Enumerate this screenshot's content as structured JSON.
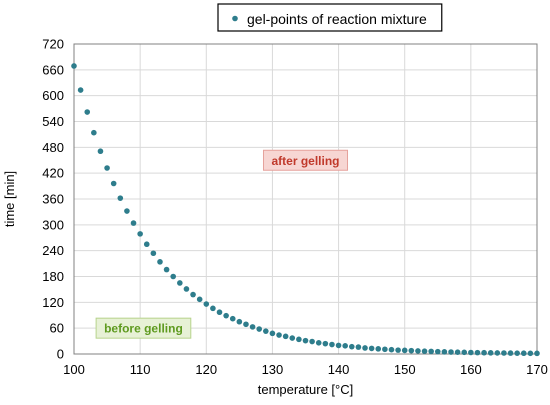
{
  "chart_data": {
    "type": "scatter",
    "xlabel": "temperature [°C]",
    "ylabel": "time [min]",
    "xlim": [
      100,
      170
    ],
    "ylim": [
      0,
      720
    ],
    "x_ticks": [
      100,
      110,
      120,
      130,
      140,
      150,
      160,
      170
    ],
    "y_ticks": [
      0,
      60,
      120,
      180,
      240,
      300,
      360,
      420,
      480,
      540,
      600,
      660,
      720
    ],
    "grid": true,
    "legend_position": "top-right",
    "series": [
      {
        "name": "gel-points of reaction mixture",
        "color": "#2e7d8c",
        "points": [
          [
            100,
            669
          ],
          [
            101,
            613
          ],
          [
            102,
            562
          ],
          [
            103,
            514
          ],
          [
            104,
            471
          ],
          [
            105,
            432
          ],
          [
            106,
            396
          ],
          [
            107,
            362
          ],
          [
            108,
            332
          ],
          [
            109,
            304
          ],
          [
            110,
            279
          ],
          [
            111,
            255
          ],
          [
            112,
            234
          ],
          [
            113,
            214
          ],
          [
            114,
            196
          ],
          [
            115,
            180
          ],
          [
            116,
            165
          ],
          [
            117,
            151
          ],
          [
            118,
            138
          ],
          [
            119,
            127
          ],
          [
            120,
            116
          ],
          [
            121,
            106
          ],
          [
            122,
            97
          ],
          [
            123,
            89
          ],
          [
            124,
            82
          ],
          [
            125,
            75
          ],
          [
            126,
            69
          ],
          [
            127,
            63
          ],
          [
            128,
            58
          ],
          [
            129,
            53
          ],
          [
            130,
            48
          ],
          [
            131,
            44
          ],
          [
            132,
            41
          ],
          [
            133,
            37
          ],
          [
            134,
            34
          ],
          [
            135,
            31
          ],
          [
            136,
            29
          ],
          [
            137,
            26
          ],
          [
            138,
            24
          ],
          [
            139,
            22
          ],
          [
            140,
            20
          ],
          [
            141,
            19
          ],
          [
            142,
            17
          ],
          [
            143,
            16
          ],
          [
            144,
            14
          ],
          [
            145,
            13
          ],
          [
            146,
            12
          ],
          [
            147,
            11
          ],
          [
            148,
            10
          ],
          [
            149,
            9
          ],
          [
            150,
            8.5
          ],
          [
            151,
            7.8
          ],
          [
            152,
            7.1
          ],
          [
            153,
            6.5
          ],
          [
            154,
            6.0
          ],
          [
            155,
            5.5
          ],
          [
            156,
            5.0
          ],
          [
            157,
            4.6
          ],
          [
            158,
            4.2
          ],
          [
            159,
            3.9
          ],
          [
            160,
            3.5
          ],
          [
            161,
            3.2
          ],
          [
            162,
            3.0
          ],
          [
            163,
            2.7
          ],
          [
            164,
            2.5
          ],
          [
            165,
            2.3
          ],
          [
            166,
            2.1
          ],
          [
            167,
            1.9
          ],
          [
            168,
            1.8
          ],
          [
            169,
            1.6
          ],
          [
            170,
            1.5
          ]
        ]
      }
    ],
    "annotations": [
      {
        "text": "after gelling",
        "x": 135,
        "y": 450,
        "color": "#c0392b",
        "bg": "#f7d6d3",
        "border": "#e5a19b"
      },
      {
        "text": "before gelling",
        "x": 110.5,
        "y": 60,
        "color": "#5e9a1f",
        "bg": "#e7f1d6",
        "border": "#b7d38c"
      }
    ]
  }
}
